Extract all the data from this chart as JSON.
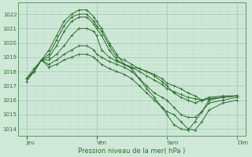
{
  "xlabel": "Pression niveau de la mer( hPa )",
  "bg_color": "#cfe8d8",
  "grid_major_color": "#9ecdb0",
  "grid_minor_color": "#b8ddc6",
  "line_color": "#2d6e2d",
  "ylim": [
    1013.5,
    1022.8
  ],
  "yticks": [
    1014,
    1015,
    1016,
    1017,
    1018,
    1019,
    1020,
    1021,
    1022
  ],
  "day_labels": [
    "Jeu",
    "Ven",
    "Sam",
    "Dim"
  ],
  "day_positions": [
    0.0,
    0.333,
    0.667,
    1.0
  ],
  "xlim": [
    -0.04,
    1.04
  ],
  "lines": [
    {
      "y": [
        1017.5,
        1018.2,
        1018.8,
        1019.5,
        1020.5,
        1021.5,
        1022.0,
        1022.3,
        1022.3,
        1021.8,
        1021.5,
        1021.0,
        1020.0,
        1019.2,
        1018.5,
        1018.2,
        1017.5,
        1016.8,
        1016.2,
        1015.5,
        1015.0,
        1014.3,
        1014.0,
        1013.9,
        1014.5,
        1015.2,
        1016.0,
        1016.2,
        1016.3
      ],
      "x": [
        0.0,
        0.036,
        0.071,
        0.107,
        0.143,
        0.179,
        0.214,
        0.25,
        0.286,
        0.321,
        0.333,
        0.357,
        0.393,
        0.429,
        0.464,
        0.5,
        0.536,
        0.571,
        0.607,
        0.643,
        0.667,
        0.7,
        0.733,
        0.767,
        0.8,
        0.833,
        0.867,
        0.933,
        1.0
      ]
    },
    {
      "y": [
        1017.5,
        1018.0,
        1018.8,
        1019.2,
        1020.2,
        1021.2,
        1021.8,
        1022.0,
        1022.0,
        1021.5,
        1021.2,
        1020.8,
        1019.8,
        1019.0,
        1018.8,
        1018.5,
        1018.2,
        1018.0,
        1017.7,
        1017.3,
        1017.0,
        1016.5,
        1016.2,
        1016.0,
        1015.8,
        1016.0,
        1016.2,
        1016.3,
        1016.3
      ],
      "x": [
        0.0,
        0.036,
        0.071,
        0.107,
        0.143,
        0.179,
        0.214,
        0.25,
        0.286,
        0.321,
        0.333,
        0.357,
        0.393,
        0.429,
        0.464,
        0.5,
        0.536,
        0.571,
        0.607,
        0.643,
        0.667,
        0.7,
        0.733,
        0.767,
        0.8,
        0.833,
        0.867,
        0.933,
        1.0
      ]
    },
    {
      "y": [
        1017.5,
        1018.0,
        1018.8,
        1019.0,
        1019.8,
        1020.8,
        1021.5,
        1021.8,
        1021.8,
        1021.3,
        1021.0,
        1020.5,
        1019.5,
        1018.8,
        1018.5,
        1018.3,
        1018.2,
        1018.0,
        1017.8,
        1017.5,
        1017.2,
        1017.0,
        1016.8,
        1016.5,
        1016.3,
        1016.0,
        1016.1,
        1016.2,
        1016.3
      ],
      "x": [
        0.0,
        0.036,
        0.071,
        0.107,
        0.143,
        0.179,
        0.214,
        0.25,
        0.286,
        0.321,
        0.333,
        0.357,
        0.393,
        0.429,
        0.464,
        0.5,
        0.536,
        0.571,
        0.607,
        0.643,
        0.667,
        0.7,
        0.733,
        0.767,
        0.8,
        0.833,
        0.867,
        0.933,
        1.0
      ]
    },
    {
      "y": [
        1017.5,
        1018.0,
        1018.8,
        1018.8,
        1019.2,
        1019.8,
        1020.5,
        1021.0,
        1021.0,
        1020.8,
        1020.5,
        1019.5,
        1019.0,
        1018.7,
        1018.5,
        1018.3,
        1018.0,
        1017.7,
        1017.4,
        1017.1,
        1016.8,
        1016.6,
        1016.4,
        1016.2,
        1016.1,
        1016.0,
        1016.1,
        1016.2,
        1016.3
      ],
      "x": [
        0.0,
        0.036,
        0.071,
        0.107,
        0.143,
        0.179,
        0.214,
        0.25,
        0.286,
        0.321,
        0.333,
        0.357,
        0.393,
        0.429,
        0.464,
        0.5,
        0.536,
        0.571,
        0.607,
        0.643,
        0.667,
        0.7,
        0.733,
        0.767,
        0.8,
        0.833,
        0.867,
        0.933,
        1.0
      ]
    },
    {
      "y": [
        1017.5,
        1018.0,
        1018.8,
        1018.5,
        1018.8,
        1019.2,
        1019.5,
        1019.8,
        1019.8,
        1019.5,
        1019.2,
        1019.0,
        1018.7,
        1018.5,
        1018.3,
        1018.0,
        1017.5,
        1017.0,
        1016.5,
        1016.2,
        1016.0,
        1015.5,
        1015.0,
        1014.8,
        1014.8,
        1015.2,
        1015.8,
        1016.0,
        1016.2
      ],
      "x": [
        0.0,
        0.036,
        0.071,
        0.107,
        0.143,
        0.179,
        0.214,
        0.25,
        0.286,
        0.321,
        0.333,
        0.357,
        0.393,
        0.429,
        0.464,
        0.5,
        0.536,
        0.571,
        0.607,
        0.643,
        0.667,
        0.7,
        0.733,
        0.767,
        0.8,
        0.833,
        0.867,
        0.933,
        1.0
      ]
    },
    {
      "y": [
        1017.3,
        1018.0,
        1018.8,
        1018.3,
        1018.5,
        1018.8,
        1019.0,
        1019.2,
        1019.2,
        1019.0,
        1018.8,
        1018.5,
        1018.2,
        1018.0,
        1017.8,
        1017.5,
        1017.0,
        1016.5,
        1016.0,
        1015.5,
        1015.2,
        1015.0,
        1014.5,
        1014.0,
        1013.9,
        1014.5,
        1015.3,
        1015.8,
        1016.0
      ],
      "x": [
        0.0,
        0.036,
        0.071,
        0.107,
        0.143,
        0.179,
        0.214,
        0.25,
        0.286,
        0.321,
        0.333,
        0.357,
        0.393,
        0.429,
        0.464,
        0.5,
        0.536,
        0.571,
        0.607,
        0.643,
        0.667,
        0.7,
        0.733,
        0.767,
        0.8,
        0.833,
        0.867,
        0.933,
        1.0
      ]
    }
  ]
}
